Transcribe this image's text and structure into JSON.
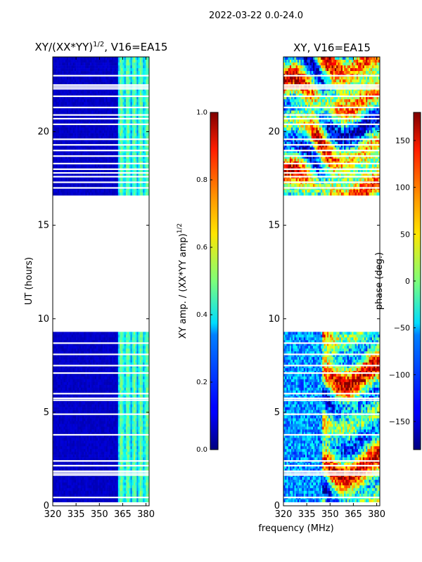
{
  "figure": {
    "suptitle": "2022-03-22 0.0-24.0",
    "shared_xlabel": "frequency (MHz)"
  },
  "chart_data": [
    {
      "type": "heatmap",
      "title_main": "XY/(XX*YY)",
      "title_exp": "1/2",
      "title_tail": ", V16=EA15",
      "xlabel": "",
      "ylabel": "UT (hours)",
      "xlim": [
        320,
        382
      ],
      "ylim": [
        0,
        24
      ],
      "xticks": [
        320,
        335,
        350,
        365,
        380
      ],
      "yticks": [
        0,
        5,
        10,
        15,
        20
      ],
      "data_blocks_ut": [
        [
          0.2,
          9.3
        ],
        [
          16.6,
          24.0
        ]
      ],
      "blank_rows_ut": [
        0.45,
        1.65,
        1.75,
        1.85,
        2.15,
        2.4,
        3.8,
        4.9,
        5.65,
        5.75,
        6.0,
        7.1,
        7.5,
        8.1,
        8.7,
        17.0,
        17.3,
        17.6,
        17.8,
        18.0,
        18.3,
        18.7,
        19.0,
        19.3,
        19.6,
        20.4,
        20.7,
        20.9,
        21.3,
        21.9,
        22.3,
        22.4,
        22.5,
        23.0
      ],
      "band_bright_mhz": [
        362,
        382
      ],
      "colorbar": {
        "label_main": "XY amp. / (XX*YY amp)",
        "label_exp": "1/2",
        "range": [
          0.0,
          1.0
        ],
        "ticks": [
          "0.0",
          "0.2",
          "0.4",
          "0.6",
          "0.8",
          "1.0"
        ]
      }
    },
    {
      "type": "heatmap",
      "title_main": "XY, V16=EA15",
      "title_exp": "",
      "title_tail": "",
      "xlabel": "",
      "ylabel": "",
      "xlim": [
        320,
        382
      ],
      "ylim": [
        0,
        24
      ],
      "xticks": [
        320,
        335,
        350,
        365,
        380
      ],
      "yticks": [
        0,
        5,
        10,
        15,
        20
      ],
      "data_blocks_ut": [
        [
          0.2,
          9.3
        ],
        [
          16.6,
          24.0
        ]
      ],
      "blank_rows_ut": [
        0.45,
        1.65,
        1.75,
        1.85,
        2.15,
        2.4,
        3.8,
        4.9,
        5.65,
        5.75,
        6.0,
        7.1,
        7.5,
        8.1,
        8.7,
        17.0,
        17.3,
        17.6,
        17.8,
        18.0,
        18.3,
        18.7,
        19.0,
        19.3,
        19.6,
        20.4,
        20.7,
        20.9,
        21.3,
        21.9,
        22.3,
        22.4,
        22.5,
        23.0
      ],
      "colorbar": {
        "label_main": "phase (deg.)",
        "label_exp": "",
        "range": [
          -180,
          180
        ],
        "ticks": [
          "−150",
          "−100",
          "−50",
          "0",
          "50",
          "100",
          "150"
        ],
        "tick_values": [
          -150,
          -100,
          -50,
          0,
          50,
          100,
          150
        ]
      }
    }
  ]
}
